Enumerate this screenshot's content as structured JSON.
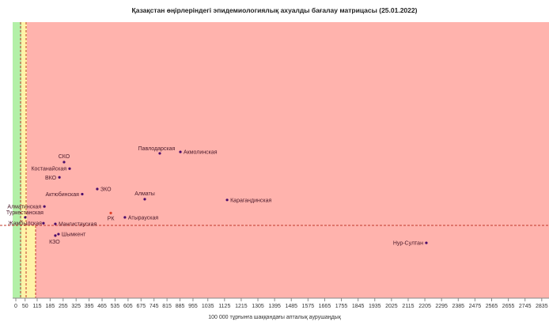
{
  "chart_data": {
    "type": "scatter",
    "title": "Қазақстан өңірлеріндегі эпидемиологиялық ахуалды бағалау матрицасы  (25.01.2022)",
    "xlabel": "100 000 тұрғынға шаққандағы апталық аурушаңдық",
    "ylabel": "",
    "xlim": [
      0,
      2870
    ],
    "ylim": [
      0,
      3.8
    ],
    "grid": false,
    "x_ticks": [
      0,
      50,
      115,
      185,
      255,
      325,
      395,
      465,
      535,
      605,
      675,
      745,
      815,
      885,
      955,
      1035,
      1125,
      1215,
      1305,
      1395,
      1485,
      1575,
      1665,
      1755,
      1845,
      1935,
      2025,
      2115,
      2205,
      2295,
      2385,
      2475,
      2565,
      2655,
      2745,
      2835
    ],
    "reference_lines": {
      "horizontal_y": 1.0,
      "vertical_x": [
        25,
        50,
        100
      ]
    },
    "zones": [
      {
        "name": "green",
        "color": "#b3f0a8"
      },
      {
        "name": "yellow",
        "color": "#fff3a8"
      },
      {
        "name": "red",
        "color": "#ffb3ad"
      }
    ],
    "point_color": "#4b0d6b",
    "highlight_color": "#e0402a",
    "points": [
      {
        "label": "Павлодарская",
        "x": 776,
        "y": 1.99
      },
      {
        "label": "Акмолинская",
        "x": 887,
        "y": 2.01
      },
      {
        "label": "СКО",
        "x": 260,
        "y": 1.87
      },
      {
        "label": "Костанайская",
        "x": 290,
        "y": 1.78
      },
      {
        "label": "ВКО",
        "x": 235,
        "y": 1.66
      },
      {
        "label": "ЗКО",
        "x": 439,
        "y": 1.5
      },
      {
        "label": "Актюбинская",
        "x": 358,
        "y": 1.43
      },
      {
        "label": "Алматы",
        "x": 695,
        "y": 1.36
      },
      {
        "label": "Карагандинская",
        "x": 1139,
        "y": 1.35
      },
      {
        "label": "Алматинская",
        "x": 154,
        "y": 1.26
      },
      {
        "label": "Туркестанская",
        "x": 51,
        "y": 1.11
      },
      {
        "label": "РК",
        "x": 512,
        "y": 1.17,
        "highlight": true
      },
      {
        "label": "Атырауская",
        "x": 588,
        "y": 1.11
      },
      {
        "label": "Жамбылская",
        "x": 149,
        "y": 1.03
      },
      {
        "label": "Мангистауская",
        "x": 213,
        "y": 1.02
      },
      {
        "label": "Шымкент",
        "x": 230,
        "y": 0.88
      },
      {
        "label": "КЗО",
        "x": 213,
        "y": 0.86
      },
      {
        "label": "Нур-Султан",
        "x": 2213,
        "y": 0.76
      }
    ]
  }
}
